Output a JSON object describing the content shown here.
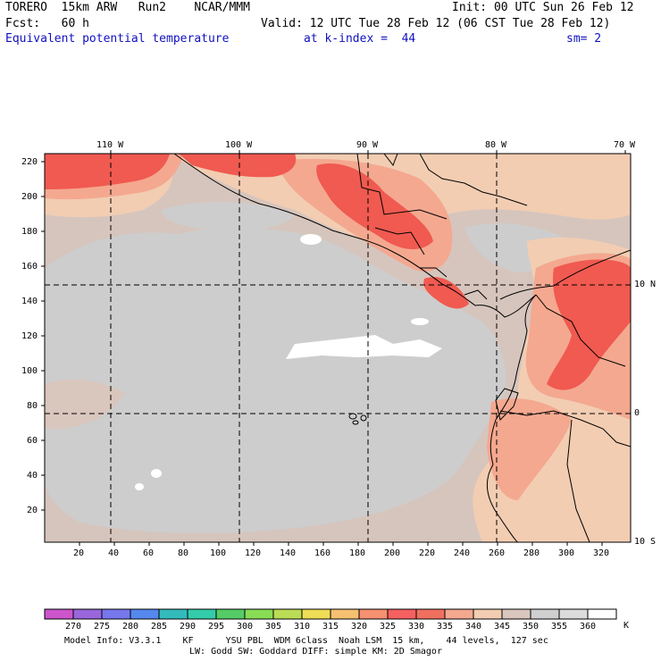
{
  "header": {
    "line1_left": "TORERO  15km ARW   Run2    NCAR/MMM",
    "line1_right": "Init: 00 UTC Sun 26 Feb 12",
    "line2_left": "Fcst:   60 h",
    "line2_right": "Valid: 12 UTC Tue 28 Feb 12 (06 CST Tue 28 Feb 12)",
    "line3_field": "Equivalent potential temperature",
    "line3_level": "at k-index =  44",
    "line3_smooth": "sm= 2"
  },
  "map": {
    "top_lon_labels": [
      "110 W",
      "100 W",
      "90 W",
      "80 W",
      "70 W"
    ],
    "right_lat_labels": [
      "10 N",
      "0",
      "10 S"
    ],
    "left_grid_labels": [
      "220",
      "200",
      "180",
      "160",
      "140",
      "120",
      "100",
      "80",
      "60",
      "40",
      "20"
    ],
    "bottom_grid_labels": [
      "20",
      "40",
      "60",
      "80",
      "100",
      "120",
      "140",
      "160",
      "180",
      "200",
      "220",
      "240",
      "260",
      "280",
      "300",
      "320"
    ]
  },
  "colorbar": {
    "unit": "K",
    "levels": [
      "270",
      "275",
      "280",
      "285",
      "290",
      "295",
      "300",
      "305",
      "310",
      "315",
      "320",
      "325",
      "330",
      "335",
      "340",
      "345",
      "350",
      "355",
      "360"
    ],
    "colors": [
      "#cc55cc",
      "#9966dd",
      "#7777ee",
      "#5588ee",
      "#33bbbb",
      "#33ccaa",
      "#55cc66",
      "#88dd55",
      "#bbdd55",
      "#eedd55",
      "#f5c070",
      "#f59070",
      "#f56060",
      "#f07060",
      "#f4a890",
      "#f2cdb2",
      "#d9c6bd",
      "#cfcfcf",
      "#dcdcdc",
      "#ffffff"
    ]
  },
  "footer": {
    "model_info": "Model Info: V3.3.1    KF      YSU PBL  WDM 6class  Noah LSM  15 km,    44 levels,  127 sec",
    "physics": "LW: Godd SW: Goddard DIFF: simple KM: 2D Smagor"
  }
}
